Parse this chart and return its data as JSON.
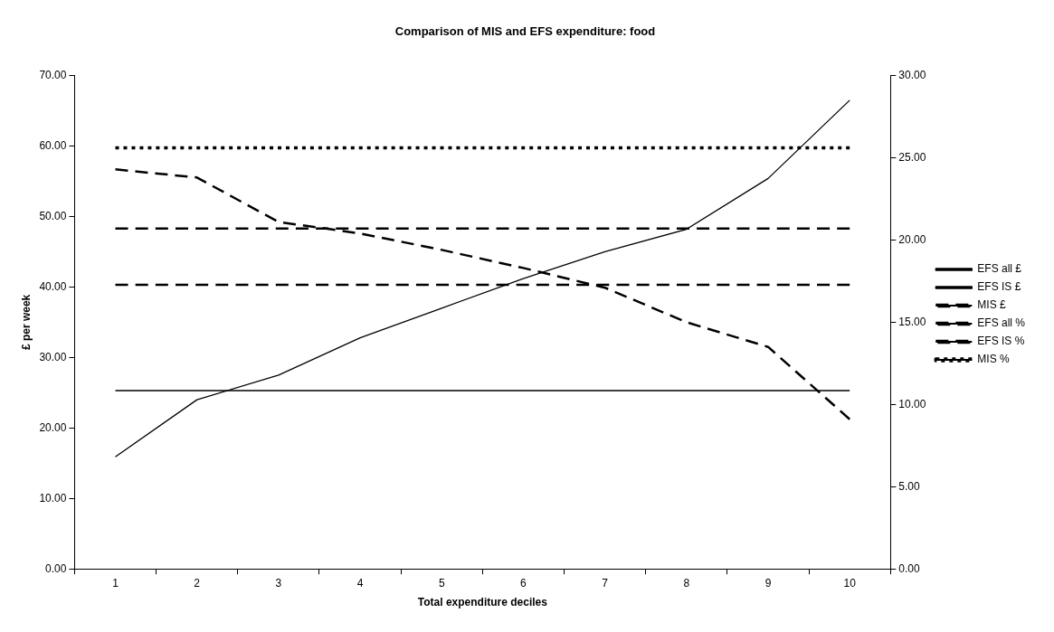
{
  "chart_data": {
    "type": "line",
    "title": "Comparison of MIS and EFS expenditure: food",
    "xlabel": "Total expenditure deciles",
    "ylabel": "£ per week",
    "categories": [
      "1",
      "2",
      "3",
      "4",
      "5",
      "6",
      "7",
      "8",
      "9",
      "10"
    ],
    "series": [
      {
        "name": "EFS all £",
        "color": "#000000",
        "line_style": "solid",
        "values": [
          15.9,
          24.0,
          27.5,
          32.8,
          37.0,
          41.2,
          45.0,
          48.2,
          55.4,
          66.5
        ]
      },
      {
        "name": "EFS IS £",
        "color": "#000000",
        "line_style": "solid",
        "values": [
          25.3,
          25.3,
          25.3,
          25.3,
          25.3,
          25.3,
          25.3,
          25.3,
          25.3,
          25.3
        ]
      },
      {
        "name": "MIS £",
        "color": "#000000",
        "line_style": "dashed",
        "values": [
          40.3,
          40.3,
          40.3,
          40.3,
          40.3,
          40.3,
          40.3,
          40.3,
          40.3,
          40.3
        ]
      },
      {
        "name": "EFS all %",
        "color": "#000000",
        "line_style": "dashed",
        "axis": "y2",
        "values": [
          24.3,
          23.8,
          21.1,
          20.4,
          19.4,
          18.3,
          17.1,
          15.0,
          13.5,
          9.1
        ]
      },
      {
        "name": "EFS IS %",
        "color": "#000000",
        "line_style": "dashed",
        "axis": "y2",
        "values": [
          20.7,
          20.7,
          20.7,
          20.7,
          20.7,
          20.7,
          20.7,
          20.7,
          20.7,
          20.7
        ]
      },
      {
        "name": "MIS %",
        "color": "#000000",
        "line_style": "dotted",
        "axis": "y2",
        "values": [
          25.6,
          25.6,
          25.6,
          25.6,
          25.6,
          25.6,
          25.6,
          25.6,
          25.6,
          25.6
        ]
      }
    ],
    "ylim": [
      0,
      70
    ],
    "yticks": [
      {
        "value": 0,
        "label": "0.00"
      },
      {
        "value": 10,
        "label": "10.00"
      },
      {
        "value": 20,
        "label": "20.00"
      },
      {
        "value": 30,
        "label": "30.00"
      },
      {
        "value": 40,
        "label": "40.00"
      },
      {
        "value": 50,
        "label": "50.00"
      },
      {
        "value": 60,
        "label": "60.00"
      },
      {
        "value": 70,
        "label": "70.00"
      }
    ],
    "y2lim": [
      0,
      30
    ],
    "y2ticks": [
      {
        "value": 0,
        "label": "0.00"
      },
      {
        "value": 5,
        "label": "5.00"
      },
      {
        "value": 10,
        "label": "10.00"
      },
      {
        "value": 15,
        "label": "15.00"
      },
      {
        "value": 20,
        "label": "20.00"
      },
      {
        "value": 25,
        "label": "25.00"
      },
      {
        "value": 30,
        "label": "30.00"
      }
    ],
    "grid": false,
    "legend": "right",
    "marker": "none"
  }
}
